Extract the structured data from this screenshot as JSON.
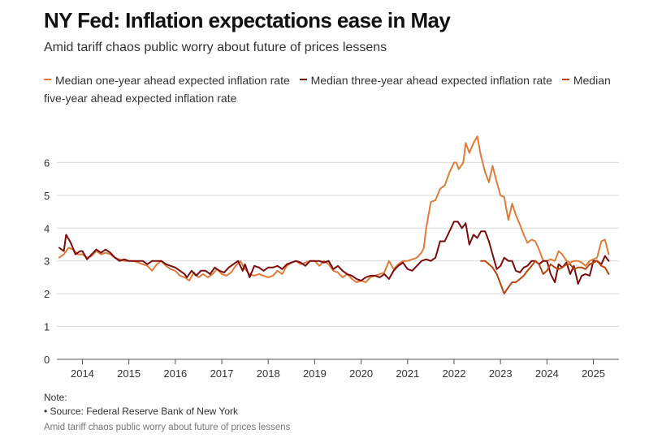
{
  "title": "NY Fed: Inflation expectations ease in May",
  "subtitle": "Amid tariff chaos public worry about future of prices lessens",
  "footer": {
    "note": "Note:",
    "source": "• Source: Federal Reserve Bank of New York",
    "caption": "Amid tariff chaos public worry about future of prices lessens"
  },
  "colors": {
    "one_year": "#e07b39",
    "three_year": "#7a0c0c",
    "five_year": "#b8460e"
  },
  "chart_data": {
    "type": "line",
    "title": "NY Fed: Inflation expectations ease in May",
    "subtitle": "Amid tariff chaos public worry about future of prices lessens",
    "xlabel": "",
    "ylabel": "",
    "ylim": [
      0,
      7
    ],
    "xlim": [
      2013.45,
      2025.55
    ],
    "yticks": [
      0,
      1,
      2,
      3,
      4,
      5,
      6
    ],
    "xticks": [
      2014,
      2015,
      2016,
      2017,
      2018,
      2019,
      2020,
      2021,
      2022,
      2023,
      2024,
      2025
    ],
    "grid": true,
    "legend_position": "top",
    "series": [
      {
        "name": "Median one-year ahead expected inflation rate",
        "color": "#e07b39",
        "points": [
          [
            2013.5,
            3.1
          ],
          [
            2013.6,
            3.2
          ],
          [
            2013.7,
            3.4
          ],
          [
            2013.8,
            3.35
          ],
          [
            2013.9,
            3.2
          ],
          [
            2014.0,
            3.2
          ],
          [
            2014.1,
            3.1
          ],
          [
            2014.2,
            3.15
          ],
          [
            2014.3,
            3.3
          ],
          [
            2014.4,
            3.2
          ],
          [
            2014.5,
            3.25
          ],
          [
            2014.6,
            3.2
          ],
          [
            2014.7,
            3.1
          ],
          [
            2014.8,
            3.05
          ],
          [
            2014.9,
            3.0
          ],
          [
            2015.0,
            3.0
          ],
          [
            2015.1,
            3.0
          ],
          [
            2015.2,
            2.95
          ],
          [
            2015.3,
            2.9
          ],
          [
            2015.4,
            2.85
          ],
          [
            2015.5,
            2.7
          ],
          [
            2015.6,
            2.9
          ],
          [
            2015.7,
            3.0
          ],
          [
            2015.8,
            2.85
          ],
          [
            2015.9,
            2.75
          ],
          [
            2016.0,
            2.7
          ],
          [
            2016.1,
            2.55
          ],
          [
            2016.2,
            2.5
          ],
          [
            2016.3,
            2.4
          ],
          [
            2016.4,
            2.65
          ],
          [
            2016.5,
            2.5
          ],
          [
            2016.6,
            2.6
          ],
          [
            2016.7,
            2.5
          ],
          [
            2016.8,
            2.6
          ],
          [
            2016.9,
            2.75
          ],
          [
            2017.0,
            2.6
          ],
          [
            2017.1,
            2.55
          ],
          [
            2017.2,
            2.65
          ],
          [
            2017.3,
            2.85
          ],
          [
            2017.4,
            3.0
          ],
          [
            2017.5,
            2.75
          ],
          [
            2017.6,
            2.6
          ],
          [
            2017.7,
            2.55
          ],
          [
            2017.8,
            2.6
          ],
          [
            2017.9,
            2.55
          ],
          [
            2018.0,
            2.5
          ],
          [
            2018.1,
            2.55
          ],
          [
            2018.2,
            2.7
          ],
          [
            2018.3,
            2.6
          ],
          [
            2018.4,
            2.85
          ],
          [
            2018.5,
            2.95
          ],
          [
            2018.6,
            3.0
          ],
          [
            2018.7,
            2.9
          ],
          [
            2018.8,
            2.95
          ],
          [
            2018.9,
            3.0
          ],
          [
            2019.0,
            3.0
          ],
          [
            2019.1,
            2.85
          ],
          [
            2019.2,
            3.0
          ],
          [
            2019.3,
            2.9
          ],
          [
            2019.4,
            2.7
          ],
          [
            2019.5,
            2.65
          ],
          [
            2019.6,
            2.5
          ],
          [
            2019.7,
            2.6
          ],
          [
            2019.8,
            2.45
          ],
          [
            2019.9,
            2.35
          ],
          [
            2020.0,
            2.4
          ],
          [
            2020.1,
            2.35
          ],
          [
            2020.2,
            2.5
          ],
          [
            2020.3,
            2.55
          ],
          [
            2020.4,
            2.6
          ],
          [
            2020.5,
            2.65
          ],
          [
            2020.6,
            3.0
          ],
          [
            2020.7,
            2.75
          ],
          [
            2020.8,
            2.9
          ],
          [
            2020.9,
            3.0
          ],
          [
            2021.0,
            3.0
          ],
          [
            2021.1,
            3.05
          ],
          [
            2021.2,
            3.1
          ],
          [
            2021.3,
            3.25
          ],
          [
            2021.35,
            3.4
          ],
          [
            2021.4,
            4.0
          ],
          [
            2021.5,
            4.8
          ],
          [
            2021.6,
            4.85
          ],
          [
            2021.7,
            5.2
          ],
          [
            2021.8,
            5.3
          ],
          [
            2021.9,
            5.7
          ],
          [
            2022.0,
            6.0
          ],
          [
            2022.05,
            6.0
          ],
          [
            2022.1,
            5.8
          ],
          [
            2022.2,
            6.0
          ],
          [
            2022.25,
            6.6
          ],
          [
            2022.33,
            6.3
          ],
          [
            2022.42,
            6.6
          ],
          [
            2022.5,
            6.8
          ],
          [
            2022.58,
            6.2
          ],
          [
            2022.67,
            5.7
          ],
          [
            2022.75,
            5.4
          ],
          [
            2022.83,
            5.9
          ],
          [
            2022.92,
            5.4
          ],
          [
            2023.0,
            5.0
          ],
          [
            2023.08,
            4.95
          ],
          [
            2023.17,
            4.25
          ],
          [
            2023.25,
            4.75
          ],
          [
            2023.33,
            4.4
          ],
          [
            2023.42,
            4.1
          ],
          [
            2023.5,
            3.8
          ],
          [
            2023.58,
            3.55
          ],
          [
            2023.67,
            3.65
          ],
          [
            2023.75,
            3.6
          ],
          [
            2023.83,
            3.35
          ],
          [
            2023.92,
            3.0
          ],
          [
            2024.0,
            3.0
          ],
          [
            2024.08,
            3.05
          ],
          [
            2024.17,
            3.0
          ],
          [
            2024.25,
            3.3
          ],
          [
            2024.33,
            3.2
          ],
          [
            2024.42,
            3.0
          ],
          [
            2024.5,
            2.95
          ],
          [
            2024.58,
            3.0
          ],
          [
            2024.67,
            3.0
          ],
          [
            2024.75,
            2.95
          ],
          [
            2024.83,
            2.85
          ],
          [
            2024.92,
            3.0
          ],
          [
            2025.0,
            3.05
          ],
          [
            2025.08,
            3.1
          ],
          [
            2025.17,
            3.6
          ],
          [
            2025.25,
            3.65
          ],
          [
            2025.33,
            3.2
          ]
        ]
      },
      {
        "name": "Median three-year ahead expected inflation rate",
        "color": "#7a0c0c",
        "points": [
          [
            2013.5,
            3.4
          ],
          [
            2013.6,
            3.3
          ],
          [
            2013.65,
            3.8
          ],
          [
            2013.75,
            3.55
          ],
          [
            2013.85,
            3.2
          ],
          [
            2013.95,
            3.3
          ],
          [
            2014.0,
            3.3
          ],
          [
            2014.1,
            3.05
          ],
          [
            2014.2,
            3.2
          ],
          [
            2014.3,
            3.35
          ],
          [
            2014.4,
            3.25
          ],
          [
            2014.5,
            3.35
          ],
          [
            2014.6,
            3.25
          ],
          [
            2014.7,
            3.1
          ],
          [
            2014.8,
            3.0
          ],
          [
            2014.9,
            3.05
          ],
          [
            2015.0,
            3.0
          ],
          [
            2015.1,
            3.0
          ],
          [
            2015.2,
            3.0
          ],
          [
            2015.3,
            3.0
          ],
          [
            2015.4,
            2.9
          ],
          [
            2015.5,
            3.0
          ],
          [
            2015.6,
            3.0
          ],
          [
            2015.7,
            3.0
          ],
          [
            2015.8,
            2.9
          ],
          [
            2015.9,
            2.85
          ],
          [
            2016.0,
            2.8
          ],
          [
            2016.1,
            2.7
          ],
          [
            2016.2,
            2.6
          ],
          [
            2016.25,
            2.5
          ],
          [
            2016.35,
            2.7
          ],
          [
            2016.45,
            2.55
          ],
          [
            2016.55,
            2.7
          ],
          [
            2016.65,
            2.7
          ],
          [
            2016.75,
            2.6
          ],
          [
            2016.85,
            2.8
          ],
          [
            2016.95,
            2.7
          ],
          [
            2017.05,
            2.65
          ],
          [
            2017.15,
            2.8
          ],
          [
            2017.25,
            2.9
          ],
          [
            2017.35,
            3.0
          ],
          [
            2017.45,
            2.7
          ],
          [
            2017.5,
            2.9
          ],
          [
            2017.6,
            2.5
          ],
          [
            2017.7,
            2.85
          ],
          [
            2017.8,
            2.8
          ],
          [
            2017.9,
            2.7
          ],
          [
            2018.0,
            2.8
          ],
          [
            2018.1,
            2.8
          ],
          [
            2018.2,
            2.85
          ],
          [
            2018.3,
            2.75
          ],
          [
            2018.4,
            2.9
          ],
          [
            2018.5,
            2.95
          ],
          [
            2018.6,
            3.0
          ],
          [
            2018.7,
            2.95
          ],
          [
            2018.8,
            2.85
          ],
          [
            2018.9,
            3.0
          ],
          [
            2019.0,
            3.0
          ],
          [
            2019.1,
            3.0
          ],
          [
            2019.2,
            2.95
          ],
          [
            2019.3,
            3.0
          ],
          [
            2019.4,
            2.75
          ],
          [
            2019.5,
            2.85
          ],
          [
            2019.6,
            2.7
          ],
          [
            2019.7,
            2.6
          ],
          [
            2019.8,
            2.55
          ],
          [
            2019.9,
            2.45
          ],
          [
            2020.0,
            2.4
          ],
          [
            2020.1,
            2.5
          ],
          [
            2020.2,
            2.55
          ],
          [
            2020.3,
            2.55
          ],
          [
            2020.4,
            2.5
          ],
          [
            2020.5,
            2.6
          ],
          [
            2020.6,
            2.45
          ],
          [
            2020.7,
            2.7
          ],
          [
            2020.8,
            2.85
          ],
          [
            2020.9,
            2.95
          ],
          [
            2021.0,
            2.75
          ],
          [
            2021.1,
            2.7
          ],
          [
            2021.2,
            2.85
          ],
          [
            2021.3,
            3.0
          ],
          [
            2021.4,
            3.05
          ],
          [
            2021.5,
            3.0
          ],
          [
            2021.6,
            3.1
          ],
          [
            2021.7,
            3.6
          ],
          [
            2021.8,
            3.6
          ],
          [
            2021.9,
            3.9
          ],
          [
            2022.0,
            4.2
          ],
          [
            2022.08,
            4.2
          ],
          [
            2022.17,
            4.0
          ],
          [
            2022.25,
            4.15
          ],
          [
            2022.33,
            3.5
          ],
          [
            2022.42,
            3.8
          ],
          [
            2022.5,
            3.7
          ],
          [
            2022.58,
            3.9
          ],
          [
            2022.67,
            3.9
          ],
          [
            2022.75,
            3.6
          ],
          [
            2022.83,
            3.2
          ],
          [
            2022.92,
            2.75
          ],
          [
            2023.0,
            2.85
          ],
          [
            2023.08,
            3.1
          ],
          [
            2023.17,
            3.0
          ],
          [
            2023.25,
            3.0
          ],
          [
            2023.33,
            2.7
          ],
          [
            2023.42,
            2.65
          ],
          [
            2023.5,
            2.8
          ],
          [
            2023.58,
            2.85
          ],
          [
            2023.67,
            3.0
          ],
          [
            2023.75,
            3.0
          ],
          [
            2023.83,
            2.9
          ],
          [
            2023.92,
            3.0
          ],
          [
            2024.0,
            3.0
          ],
          [
            2024.08,
            2.6
          ],
          [
            2024.17,
            2.35
          ],
          [
            2024.25,
            2.9
          ],
          [
            2024.33,
            2.8
          ],
          [
            2024.42,
            2.95
          ],
          [
            2024.5,
            2.6
          ],
          [
            2024.58,
            2.85
          ],
          [
            2024.67,
            2.3
          ],
          [
            2024.75,
            2.55
          ],
          [
            2024.83,
            2.6
          ],
          [
            2024.92,
            2.55
          ],
          [
            2025.0,
            3.0
          ],
          [
            2025.08,
            3.0
          ],
          [
            2025.17,
            2.9
          ],
          [
            2025.25,
            3.15
          ],
          [
            2025.33,
            3.0
          ]
        ]
      },
      {
        "name": "Median five-year ahead expected inflation rate",
        "color": "#b8460e",
        "points": [
          [
            2022.58,
            3.0
          ],
          [
            2022.67,
            3.0
          ],
          [
            2022.75,
            2.9
          ],
          [
            2022.83,
            2.8
          ],
          [
            2022.92,
            2.6
          ],
          [
            2023.0,
            2.3
          ],
          [
            2023.08,
            2.0
          ],
          [
            2023.17,
            2.2
          ],
          [
            2023.25,
            2.35
          ],
          [
            2023.33,
            2.35
          ],
          [
            2023.42,
            2.45
          ],
          [
            2023.5,
            2.55
          ],
          [
            2023.58,
            2.7
          ],
          [
            2023.67,
            2.85
          ],
          [
            2023.75,
            3.0
          ],
          [
            2023.83,
            2.9
          ],
          [
            2023.92,
            2.6
          ],
          [
            2024.0,
            2.7
          ],
          [
            2024.08,
            2.9
          ],
          [
            2024.17,
            2.8
          ],
          [
            2024.25,
            2.75
          ],
          [
            2024.33,
            2.8
          ],
          [
            2024.42,
            2.9
          ],
          [
            2024.5,
            2.9
          ],
          [
            2024.58,
            2.75
          ],
          [
            2024.67,
            2.8
          ],
          [
            2024.75,
            2.8
          ],
          [
            2024.83,
            2.75
          ],
          [
            2024.92,
            2.9
          ],
          [
            2025.0,
            2.95
          ],
          [
            2025.08,
            3.0
          ],
          [
            2025.17,
            2.85
          ],
          [
            2025.25,
            2.8
          ],
          [
            2025.33,
            2.6
          ]
        ]
      }
    ]
  }
}
